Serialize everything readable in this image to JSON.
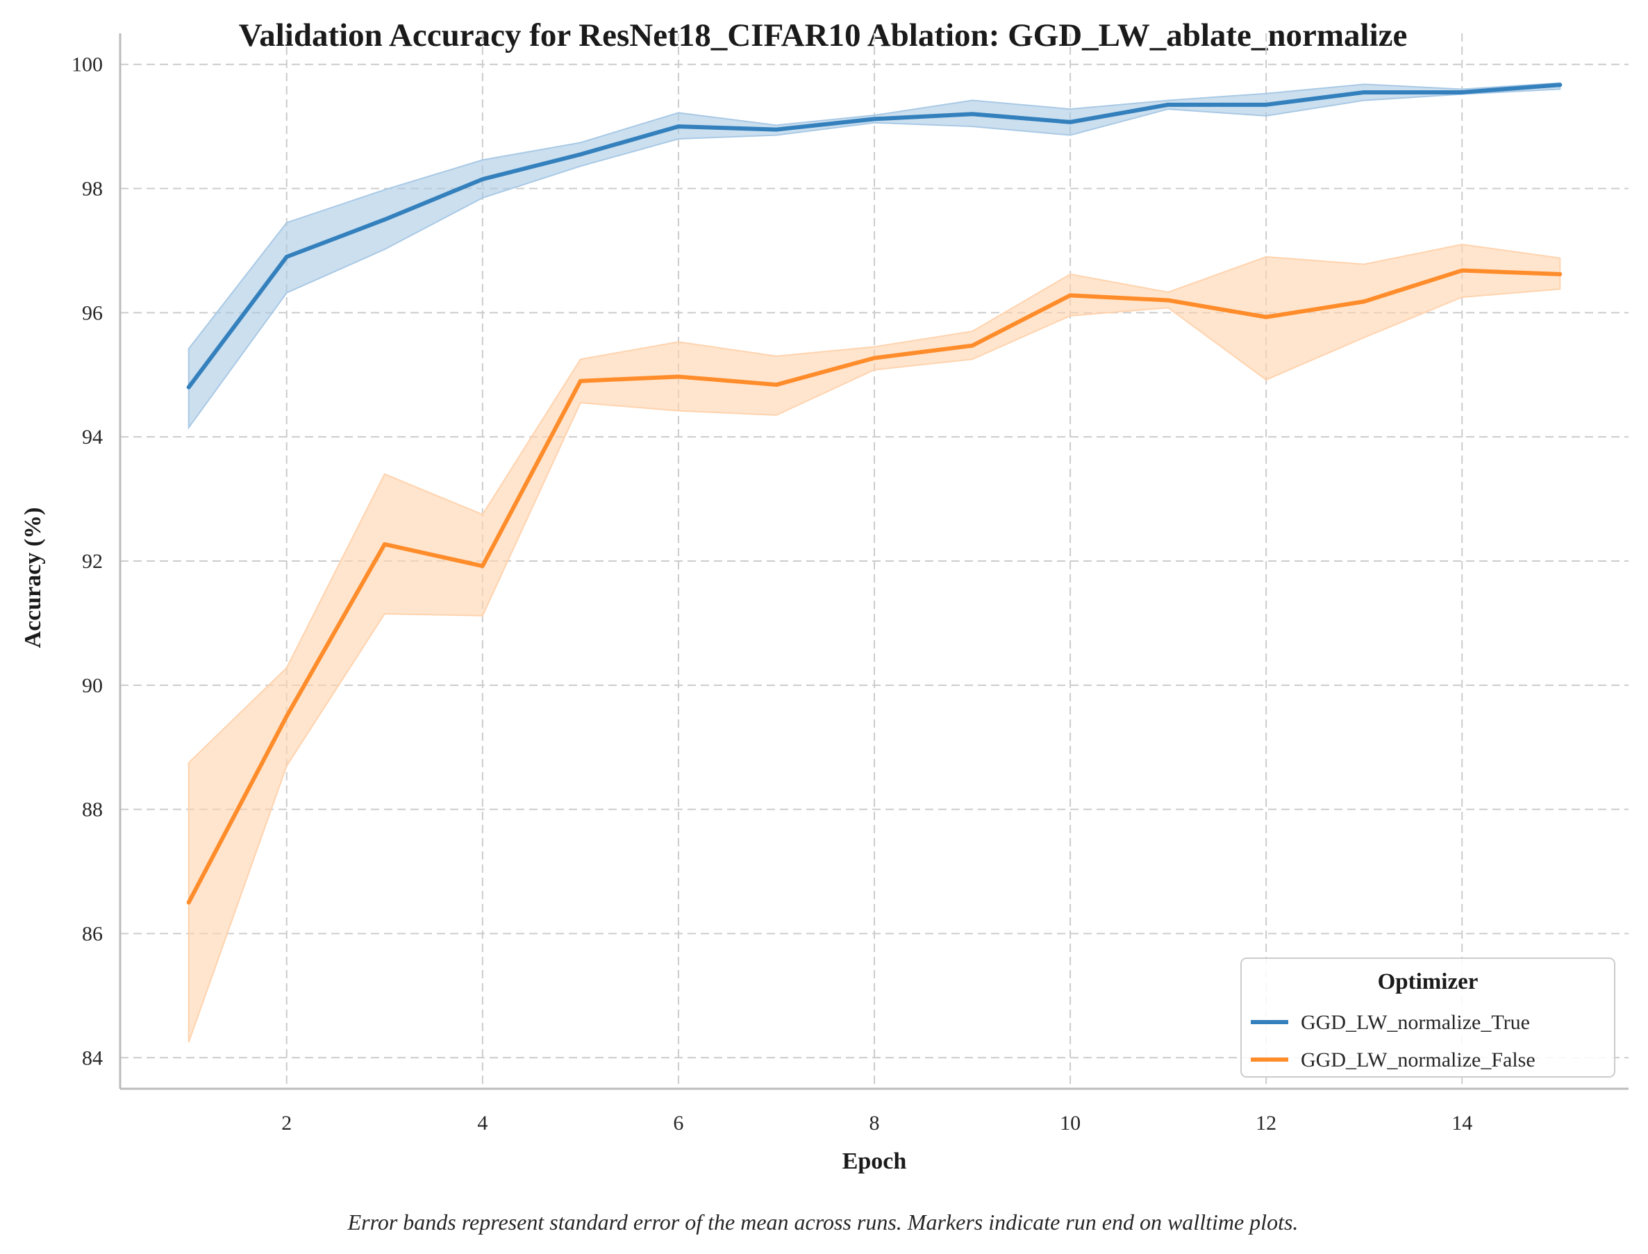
{
  "chart_data": {
    "type": "line",
    "title": "Validation Accuracy for ResNet18_CIFAR10 Ablation: GGD_LW_ablate_normalize",
    "xlabel": "Epoch",
    "ylabel": "Accuracy (%)",
    "xlim": [
      0.3,
      15.7
    ],
    "ylim": [
      83.5,
      100.5
    ],
    "xticks": [
      2,
      4,
      6,
      8,
      10,
      12,
      14
    ],
    "yticks": [
      84,
      86,
      88,
      90,
      92,
      94,
      96,
      98,
      100
    ],
    "grid": true,
    "legend": {
      "title": "Optimizer",
      "placement": "lower-right"
    },
    "footnote": "Error bands represent standard error of the mean across runs. Markers indicate run end on walltime plots.",
    "x": [
      1,
      2,
      3,
      4,
      5,
      6,
      7,
      8,
      9,
      10,
      11,
      12,
      13,
      14,
      15
    ],
    "series": [
      {
        "name": "GGD_LW_normalize_True",
        "color": "#3380bd",
        "band_color": "#a9c9e5",
        "values": [
          94.8,
          96.9,
          97.5,
          98.15,
          98.55,
          99.0,
          98.95,
          99.12,
          99.2,
          99.07,
          99.35,
          99.35,
          99.55,
          99.55,
          99.67
        ],
        "lower": [
          94.15,
          96.32,
          97.02,
          97.85,
          98.36,
          98.8,
          98.86,
          99.06,
          99.0,
          98.86,
          99.28,
          99.17,
          99.42,
          99.52,
          99.6
        ],
        "upper": [
          95.42,
          97.45,
          97.98,
          98.46,
          98.74,
          99.22,
          99.02,
          99.18,
          99.42,
          99.28,
          99.42,
          99.53,
          99.68,
          99.6,
          99.7
        ]
      },
      {
        "name": "GGD_LW_normalize_False",
        "color": "#ff8c2a",
        "band_color": "#ffd3ae",
        "values": [
          86.5,
          89.5,
          92.27,
          91.92,
          94.9,
          94.97,
          94.84,
          95.27,
          95.47,
          96.28,
          96.2,
          95.93,
          96.18,
          96.68,
          96.62
        ],
        "lower": [
          84.25,
          88.7,
          91.15,
          91.12,
          94.55,
          94.42,
          94.35,
          95.08,
          95.25,
          95.95,
          96.08,
          94.92,
          95.6,
          96.25,
          96.38
        ],
        "upper": [
          88.75,
          90.28,
          93.4,
          92.75,
          95.25,
          95.53,
          95.3,
          95.45,
          95.7,
          96.62,
          96.33,
          96.9,
          96.78,
          97.1,
          96.88
        ]
      }
    ]
  }
}
